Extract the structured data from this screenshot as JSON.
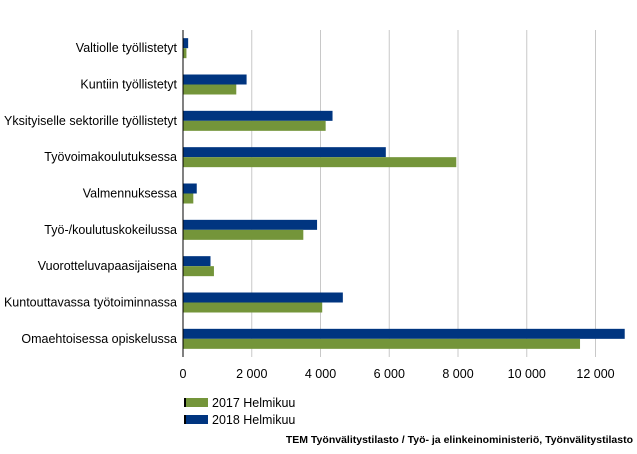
{
  "chart_data": {
    "type": "bar",
    "orientation": "horizontal",
    "categories": [
      "Valtiolle työllistetyt",
      "Kuntiin työllistetyt",
      "Yksityiselle sektorille työllistetyt",
      "Työvoimakoulutuksessa",
      "Valmennuksessa",
      "Työ-/koulutuskokeilussa",
      "Vuorotteluvapaasijaisena",
      "Kuntouttavassa työtoiminnassa",
      "Omaehtoisessa opiskelussa"
    ],
    "series": [
      {
        "name": "2018 Helmikuu",
        "color": "#003580",
        "values": [
          150,
          1850,
          4350,
          5900,
          400,
          3900,
          800,
          4650,
          12850
        ]
      },
      {
        "name": "2017 Helmikuu",
        "color": "#74953a",
        "values": [
          100,
          1550,
          4150,
          7950,
          300,
          3500,
          900,
          4050,
          11550
        ]
      }
    ],
    "xlim": [
      0,
      12800
    ],
    "xticks": [
      0,
      2000,
      4000,
      6000,
      8000,
      10000,
      12000
    ],
    "xtick_labels": [
      "0",
      "2 000",
      "4 000",
      "6 000",
      "8 000",
      "10 000",
      "12 000"
    ],
    "grid": true,
    "legend_position": "bottom-left",
    "legend": [
      "2017 Helmikuu",
      "2018 Helmikuu"
    ],
    "source": "TEM Työnvälitystilasto / Työ- ja elinkeinoministeriö, Työnvälitystilasto"
  }
}
